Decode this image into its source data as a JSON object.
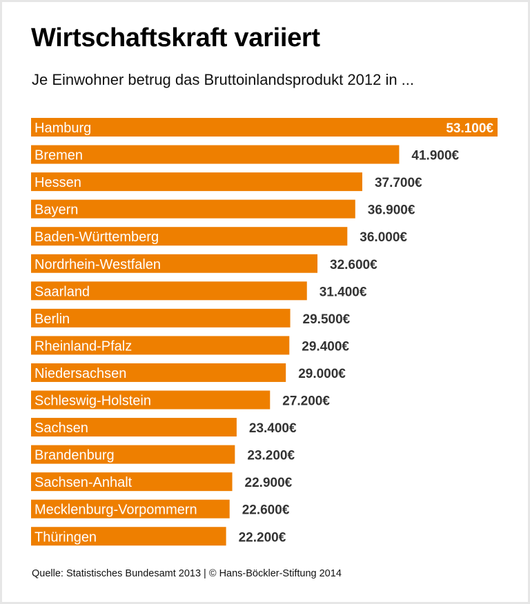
{
  "chart_data": {
    "type": "bar",
    "orientation": "horizontal",
    "title": "Wirtschaftskraft variiert",
    "subtitle": "Je Einwohner betrug das Bruttoinlandsprodukt 2012 in ...",
    "categories": [
      "Hamburg",
      "Bremen",
      "Hessen",
      "Bayern",
      "Baden-Württemberg",
      "Nordrhein-Westfalen",
      "Saarland",
      "Berlin",
      "Rheinland-Pfalz",
      "Niedersachsen",
      "Schleswig-Holstein",
      "Sachsen",
      "Brandenburg",
      "Sachsen-Anhalt",
      "Mecklenburg-Vorpommern",
      "Thüringen"
    ],
    "values": [
      53100,
      41900,
      37700,
      36900,
      36000,
      32600,
      31400,
      29500,
      29400,
      29000,
      27200,
      23400,
      23200,
      22900,
      22600,
      22200
    ],
    "value_labels": [
      "53.100€",
      "41.900€",
      "37.700€",
      "36.900€",
      "36.000€",
      "32.600€",
      "31.400€",
      "29.500€",
      "29.400€",
      "29.000€",
      "27.200€",
      "23.400€",
      "23.200€",
      "22.900€",
      "22.600€",
      "22.200€"
    ],
    "xlim": [
      0,
      53100
    ],
    "grid": false,
    "colors": {
      "bar": "#ee7f00",
      "label_inside": "#ffffff",
      "value": "#333333"
    }
  },
  "source": "Quelle: Statistisches Bundesamt 2013 | © Hans-Böckler-Stiftung 2014"
}
